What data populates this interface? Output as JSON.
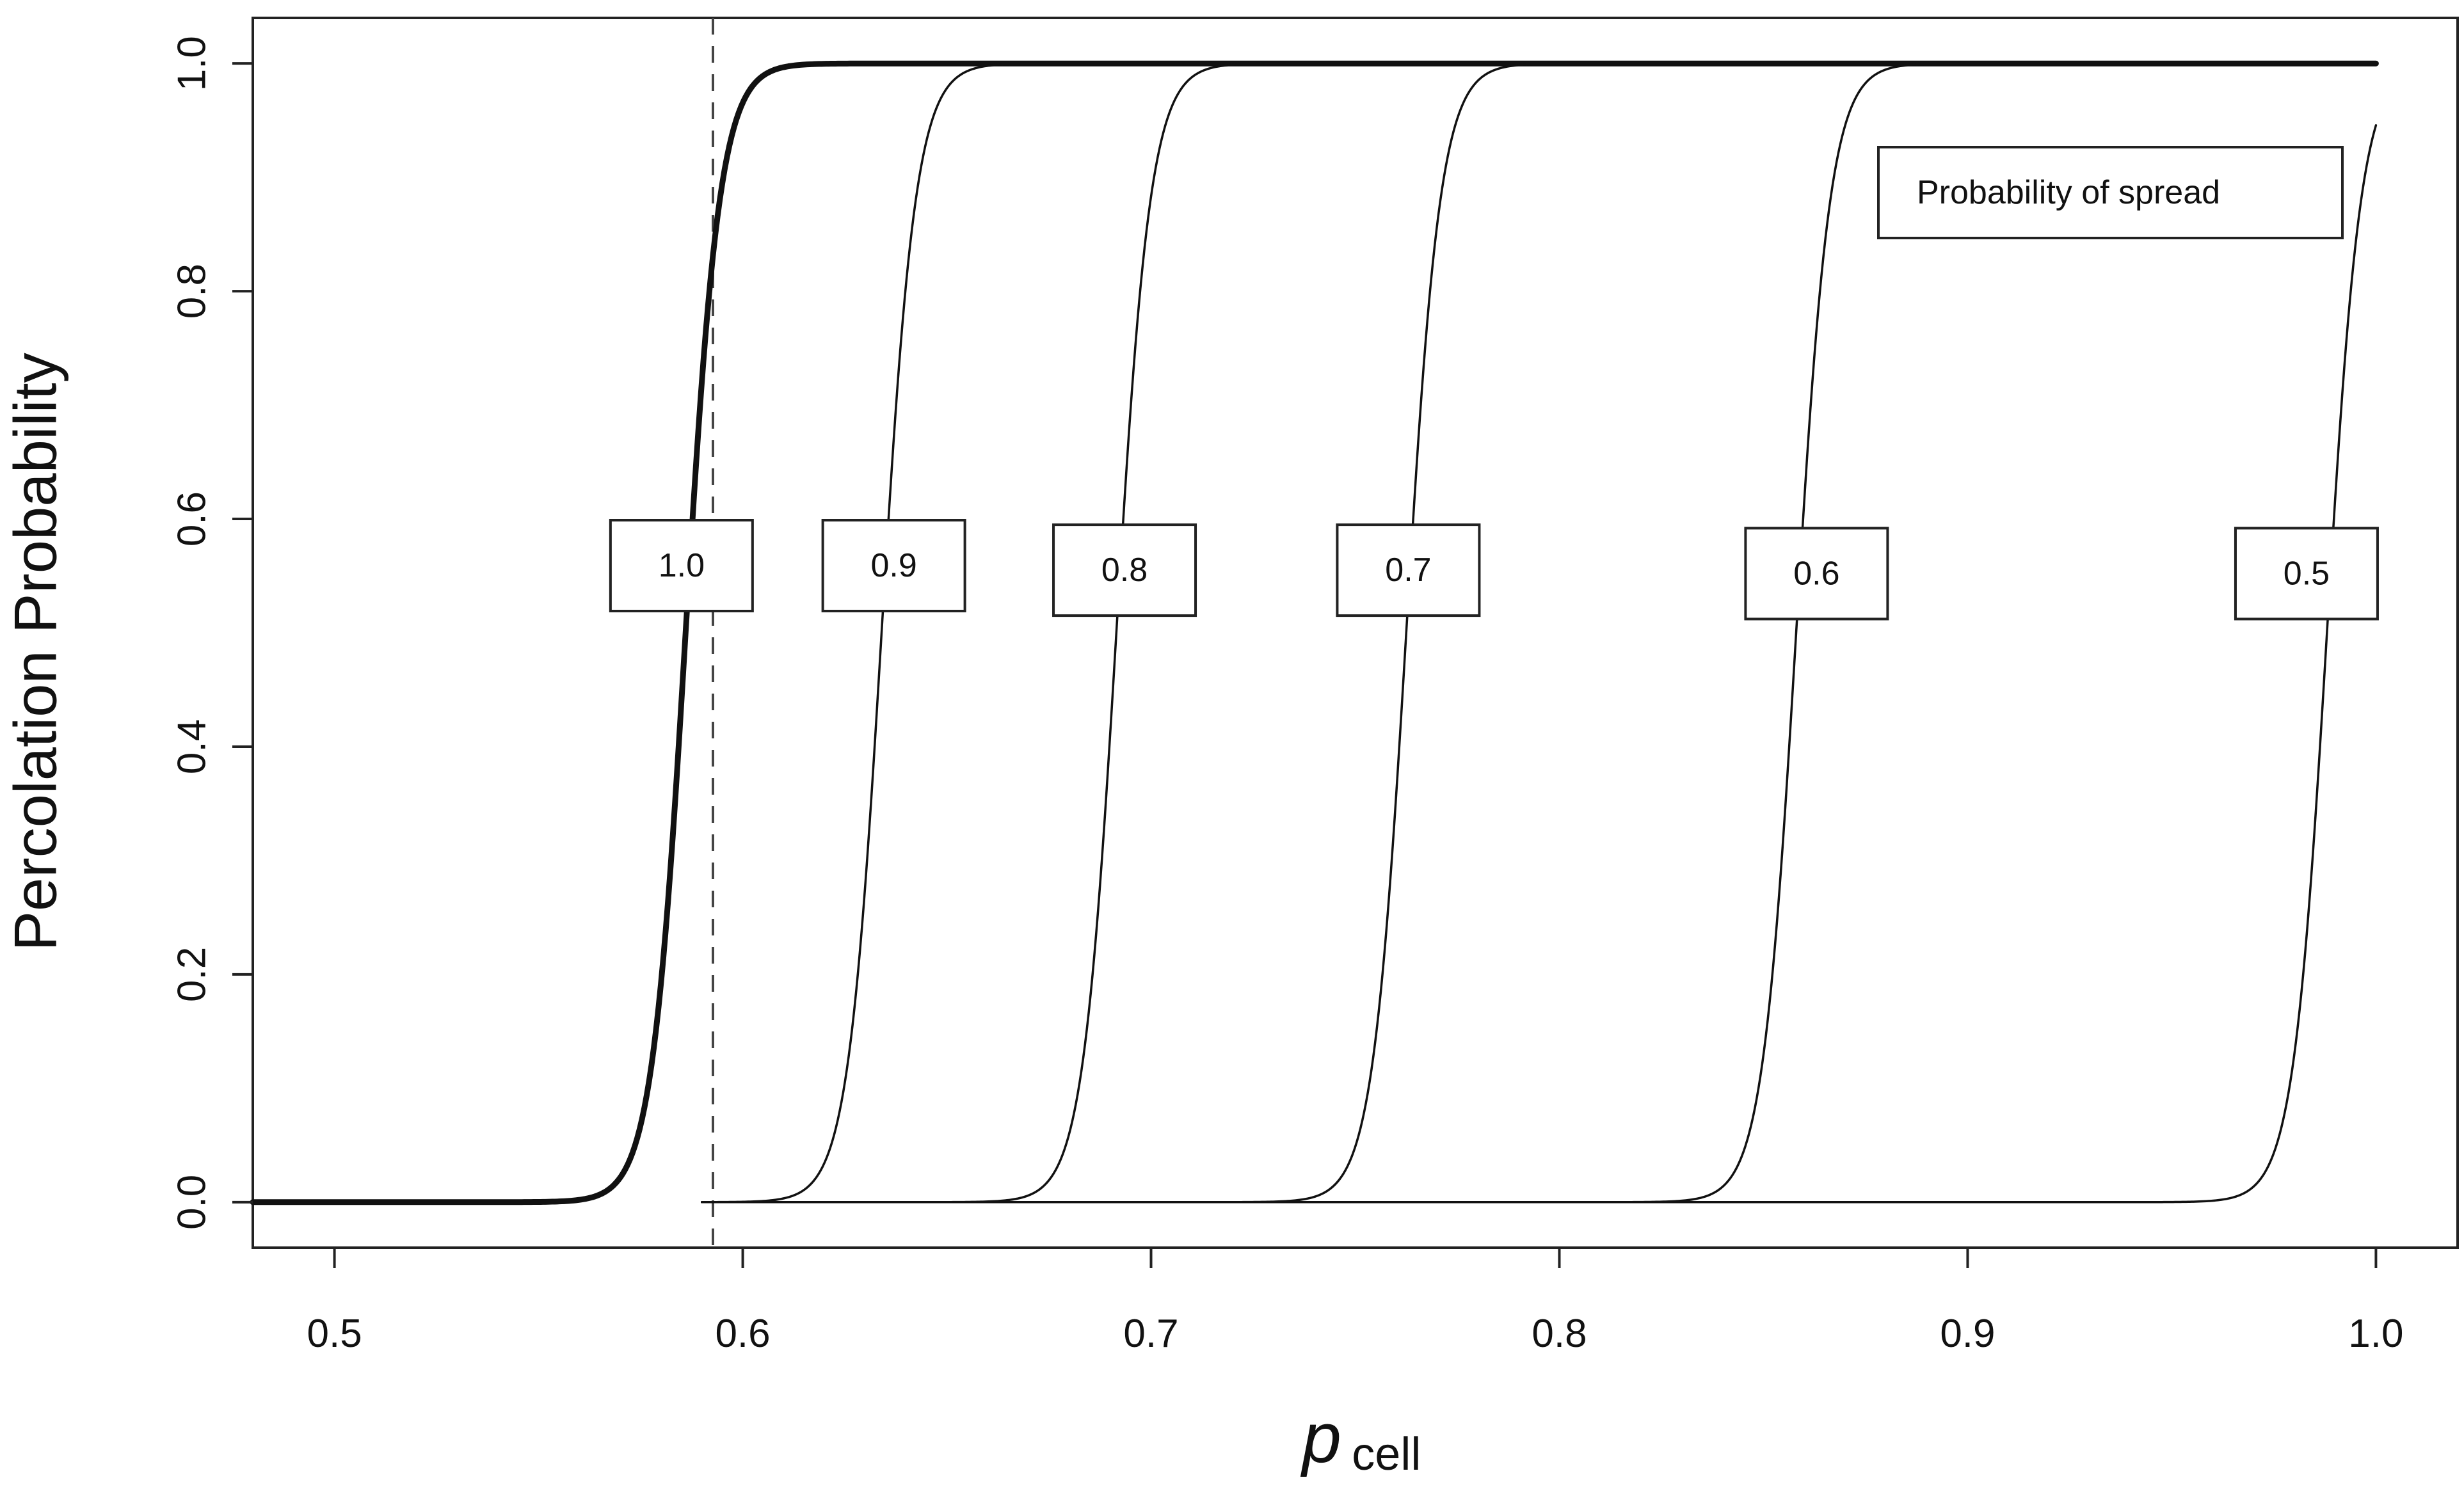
{
  "chart_data": {
    "type": "line",
    "title": "",
    "xlabel": {
      "main": "p",
      "sub": "cell"
    },
    "ylabel": "Percolation Probability",
    "xlim": [
      0.48,
      1.02
    ],
    "ylim": [
      -0.04,
      1.04
    ],
    "x_ticks": [
      {
        "value": 0.5,
        "label": "0.5"
      },
      {
        "value": 0.6,
        "label": "0.6"
      },
      {
        "value": 0.7,
        "label": "0.7"
      },
      {
        "value": 0.8,
        "label": "0.8"
      },
      {
        "value": 0.9,
        "label": "0.9"
      },
      {
        "value": 1.0,
        "label": "1.0"
      }
    ],
    "y_ticks": [
      {
        "value": 0.0,
        "label": "0.0"
      },
      {
        "value": 0.2,
        "label": "0.2"
      },
      {
        "value": 0.4,
        "label": "0.4"
      },
      {
        "value": 0.6,
        "label": "0.6"
      },
      {
        "value": 0.8,
        "label": "0.8"
      },
      {
        "value": 1.0,
        "label": "1.0"
      }
    ],
    "grid": false,
    "legend": {
      "title": "Probability of spread",
      "placement": "top-right"
    },
    "reference_line": {
      "x": 0.5927,
      "style": "dashed"
    },
    "series": [
      {
        "label": "1.0",
        "midpoint": 0.586,
        "width": 0.0042,
        "bold": true,
        "x_start": 0.48,
        "x_end": 1.0
      },
      {
        "label": "0.9",
        "midpoint": 0.634,
        "width": 0.0042,
        "bold": false,
        "x_start": 0.59,
        "x_end": 1.0
      },
      {
        "label": "0.8",
        "midpoint": 0.6915,
        "width": 0.0042,
        "bold": false,
        "x_start": 0.59,
        "x_end": 1.0
      },
      {
        "label": "0.7",
        "midpoint": 0.7625,
        "width": 0.0042,
        "bold": false,
        "x_start": 0.59,
        "x_end": 1.0
      },
      {
        "label": "0.6",
        "midpoint": 0.858,
        "width": 0.0042,
        "bold": false,
        "x_start": 0.59,
        "x_end": 1.0
      },
      {
        "label": "0.5",
        "midpoint": 0.988,
        "width": 0.0042,
        "bold": false,
        "x_start": 0.59,
        "x_end": 1.0
      }
    ],
    "curve_labels": [
      {
        "text": "1.0",
        "x": 0.585,
        "y": 0.559
      },
      {
        "text": "0.9",
        "x": 0.637,
        "y": 0.559
      },
      {
        "text": "0.8",
        "x": 0.6935,
        "y": 0.555
      },
      {
        "text": "0.7",
        "x": 0.763,
        "y": 0.555
      },
      {
        "text": "0.6",
        "x": 0.863,
        "y": 0.552
      },
      {
        "text": "0.5",
        "x": 0.983,
        "y": 0.552
      }
    ]
  }
}
